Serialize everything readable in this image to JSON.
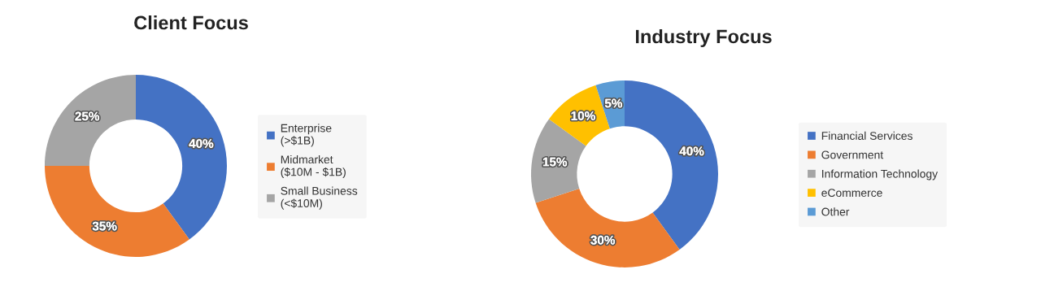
{
  "chart_data": [
    {
      "type": "donut",
      "title": "Client Focus",
      "categories": [
        "Enterprise\n(>$1B)",
        "Midmarket\n($10M - $1B)",
        "Small Business\n(<$10M)"
      ],
      "values": [
        40,
        35,
        25
      ],
      "colors": [
        "#4472c4",
        "#ed7d31",
        "#a5a5a5"
      ],
      "value_labels": [
        "40%",
        "35%",
        "25%"
      ],
      "legend": "right"
    },
    {
      "type": "donut",
      "title": "Industry Focus",
      "categories": [
        "Financial Services",
        "Government",
        "Information Technology",
        "eCommerce",
        "Other"
      ],
      "values": [
        40,
        30,
        15,
        10,
        5
      ],
      "colors": [
        "#4472c4",
        "#ed7d31",
        "#a5a5a5",
        "#ffc000",
        "#5b9bd5"
      ],
      "value_labels": [
        "40%",
        "30%",
        "15%",
        "10%",
        "5%"
      ],
      "legend": "right"
    }
  ]
}
